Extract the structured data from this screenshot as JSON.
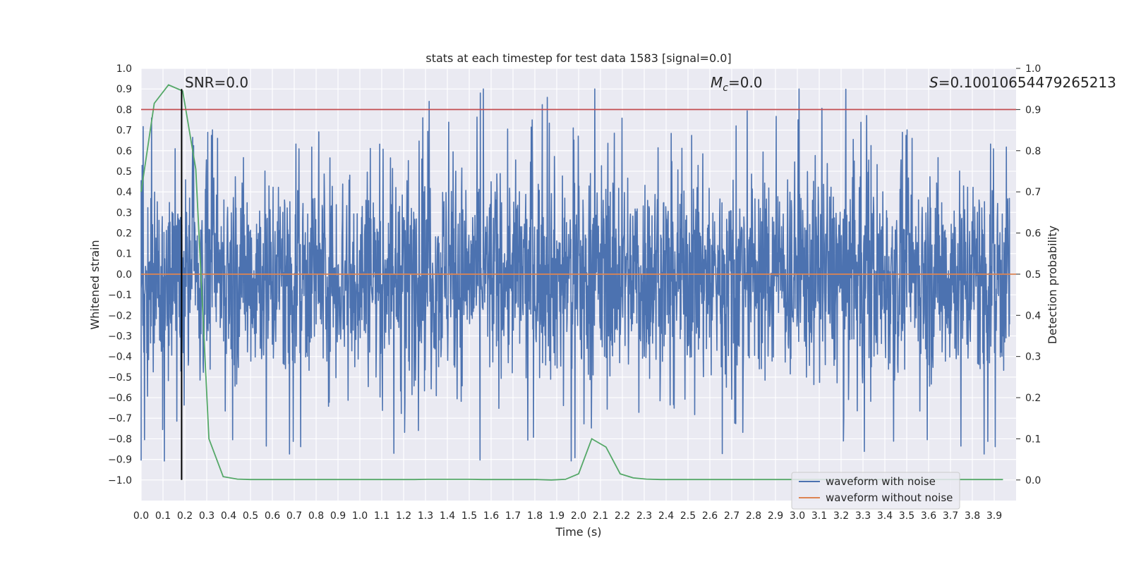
{
  "chart_data": {
    "type": "line",
    "title": "stats at each timestep for test data 1583 [signal=0.0]",
    "xlabel": "Time (s)",
    "ylabel": "Whitened strain",
    "ylabel_right": "Detection probability",
    "xlim": [
      0.0,
      4.0
    ],
    "ylim": [
      -1.1,
      1.0
    ],
    "ylim_right": [
      -0.05,
      1.0
    ],
    "x_ticks": [
      0.0,
      0.1,
      0.2,
      0.3,
      0.4,
      0.5,
      0.6,
      0.7,
      0.8,
      0.9,
      1.0,
      1.1,
      1.2,
      1.3,
      1.4,
      1.5,
      1.6,
      1.7,
      1.8,
      1.9,
      2.0,
      2.1,
      2.2,
      2.3,
      2.4,
      2.5,
      2.6,
      2.7,
      2.8,
      2.9,
      3.0,
      3.1,
      3.2,
      3.3,
      3.4,
      3.5,
      3.6,
      3.7,
      3.8,
      3.9
    ],
    "y_ticks": [
      1.0,
      0.9,
      0.8,
      0.7,
      0.6,
      0.5,
      0.4,
      0.3,
      0.2,
      0.1,
      0.0,
      -0.1,
      -0.2,
      -0.3,
      -0.4,
      -0.5,
      -0.6,
      -0.7,
      -0.8,
      -0.9,
      -1.0
    ],
    "y_ticks_right": [
      1.0,
      0.9,
      0.8,
      0.7,
      0.6,
      0.5,
      0.4,
      0.3,
      0.2,
      0.1,
      0.0
    ],
    "grid": true,
    "background": "#eaeaf2",
    "legend": {
      "position": "lower-right",
      "entries": [
        {
          "label": "waveform with noise",
          "color": "#4c72b0"
        },
        {
          "label": "waveform without noise",
          "color": "#dd8452"
        }
      ]
    },
    "annotations": {
      "snr": "SNR=0.0",
      "mc_symbol": "M",
      "mc_subscript": "c",
      "mc_value": "=0.0",
      "s_symbol": "S",
      "s_value": "=0.10010654479265213"
    },
    "series": [
      {
        "name": "waveform with noise",
        "color": "#4c72b0",
        "axis": "left",
        "style": "dense noise, amplitude roughly -1.0 to 0.9"
      },
      {
        "name": "waveform without noise",
        "color": "#dd8452",
        "axis": "left",
        "x": [
          0.0,
          4.0
        ],
        "y": [
          0.0,
          0.0
        ]
      },
      {
        "color": "#55a868",
        "axis": "right",
        "x": [
          0.0,
          0.06,
          0.125,
          0.19,
          0.25,
          0.31,
          0.375,
          0.44,
          0.5,
          0.56,
          0.625,
          0.69,
          0.75,
          0.81,
          0.875,
          0.94,
          1.0,
          1.06,
          1.125,
          1.19,
          1.25,
          1.31,
          1.375,
          1.44,
          1.5,
          1.56,
          1.625,
          1.69,
          1.75,
          1.81,
          1.875,
          1.94,
          2.0,
          2.06,
          2.125,
          2.19,
          2.25,
          2.31,
          2.375,
          2.44,
          2.5,
          2.56,
          2.625,
          2.69,
          2.75,
          2.81,
          2.875,
          2.94,
          3.0,
          3.06,
          3.125,
          3.19,
          3.25,
          3.31,
          3.375,
          3.44,
          3.5,
          3.56,
          3.625,
          3.69,
          3.75,
          3.81,
          3.875,
          3.94
        ],
        "y": [
          0.7,
          0.915,
          0.96,
          0.945,
          0.755,
          0.1,
          0.008,
          0.002,
          0.001,
          0.001,
          0.001,
          0.001,
          0.001,
          0.001,
          0.001,
          0.001,
          0.001,
          0.001,
          0.001,
          0.001,
          0.001,
          0.0015,
          0.0015,
          0.0015,
          0.0015,
          0.001,
          0.001,
          0.001,
          0.001,
          0.001,
          0.0,
          0.0015,
          0.015,
          0.1,
          0.08,
          0.015,
          0.005,
          0.002,
          0.001,
          0.001,
          0.001,
          0.001,
          0.001,
          0.001,
          0.001,
          0.001,
          0.001,
          0.001,
          0.001,
          0.001,
          0.001,
          0.001,
          0.001,
          0.001,
          0.001,
          0.001,
          0.001,
          0.001,
          0.001,
          0.001,
          0.001,
          0.001,
          0.001,
          0.001
        ]
      },
      {
        "color": "#c44e52",
        "axis": "right",
        "x": [
          0.0,
          4.0
        ],
        "y": [
          0.9,
          0.9
        ]
      },
      {
        "color": "#000000",
        "axis": "left",
        "x": [
          0.185,
          0.185
        ],
        "y": [
          -1.0,
          0.9
        ]
      }
    ]
  }
}
